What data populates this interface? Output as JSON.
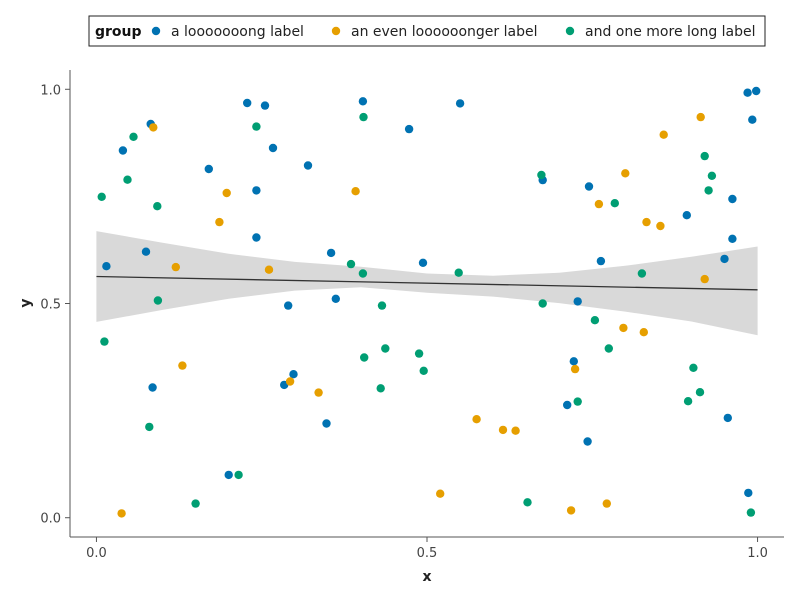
{
  "chart_data": {
    "type": "scatter",
    "title": "",
    "xlabel": "x",
    "ylabel": "y",
    "xlim": [
      -0.04,
      1.04
    ],
    "ylim": [
      -0.045,
      1.045
    ],
    "x_ticks": [
      0.0,
      0.5,
      1.0
    ],
    "x_tick_labels": [
      "0.0",
      "0.5",
      "1.0"
    ],
    "y_ticks": [
      0.0,
      0.5,
      1.0
    ],
    "y_tick_labels": [
      "0.0",
      "0.5",
      "1.0"
    ],
    "grid": false,
    "legend": {
      "title": "group",
      "placement": "top",
      "entries": [
        "a looooooong label",
        "an even loooooonger label",
        "and one more long label"
      ]
    },
    "colors": [
      "#0072B2",
      "#E69F00",
      "#009E73"
    ],
    "series": [
      {
        "name": "a looooooong label",
        "points": [
          [
            0.015,
            0.587
          ],
          [
            0.04,
            0.857
          ],
          [
            0.075,
            0.621
          ],
          [
            0.082,
            0.919
          ],
          [
            0.085,
            0.304
          ],
          [
            0.17,
            0.814
          ],
          [
            0.2,
            0.1
          ],
          [
            0.228,
            0.968
          ],
          [
            0.242,
            0.764
          ],
          [
            0.242,
            0.654
          ],
          [
            0.255,
            0.962
          ],
          [
            0.267,
            0.863
          ],
          [
            0.284,
            0.31
          ],
          [
            0.29,
            0.495
          ],
          [
            0.298,
            0.335
          ],
          [
            0.32,
            0.822
          ],
          [
            0.348,
            0.22
          ],
          [
            0.355,
            0.618
          ],
          [
            0.362,
            0.511
          ],
          [
            0.403,
            0.972
          ],
          [
            0.473,
            0.907
          ],
          [
            0.494,
            0.595
          ],
          [
            0.55,
            0.967
          ],
          [
            0.675,
            0.788
          ],
          [
            0.712,
            0.263
          ],
          [
            0.722,
            0.365
          ],
          [
            0.728,
            0.505
          ],
          [
            0.743,
            0.178
          ],
          [
            0.745,
            0.773
          ],
          [
            0.763,
            0.599
          ],
          [
            0.893,
            0.706
          ],
          [
            0.95,
            0.604
          ],
          [
            0.955,
            0.233
          ],
          [
            0.962,
            0.744
          ],
          [
            0.962,
            0.651
          ],
          [
            0.985,
            0.992
          ],
          [
            0.986,
            0.058
          ],
          [
            0.992,
            0.929
          ],
          [
            0.998,
            0.996
          ]
        ]
      },
      {
        "name": "an even loooooonger label",
        "points": [
          [
            0.038,
            0.01
          ],
          [
            0.086,
            0.911
          ],
          [
            0.12,
            0.585
          ],
          [
            0.13,
            0.355
          ],
          [
            0.186,
            0.69
          ],
          [
            0.197,
            0.758
          ],
          [
            0.261,
            0.579
          ],
          [
            0.293,
            0.318
          ],
          [
            0.336,
            0.292
          ],
          [
            0.392,
            0.762
          ],
          [
            0.52,
            0.056
          ],
          [
            0.575,
            0.23
          ],
          [
            0.615,
            0.205
          ],
          [
            0.634,
            0.203
          ],
          [
            0.718,
            0.017
          ],
          [
            0.724,
            0.347
          ],
          [
            0.76,
            0.732
          ],
          [
            0.772,
            0.033
          ],
          [
            0.797,
            0.443
          ],
          [
            0.8,
            0.804
          ],
          [
            0.828,
            0.433
          ],
          [
            0.832,
            0.69
          ],
          [
            0.853,
            0.681
          ],
          [
            0.858,
            0.894
          ],
          [
            0.914,
            0.935
          ],
          [
            0.92,
            0.557
          ]
        ]
      },
      {
        "name": "and one more long label",
        "points": [
          [
            0.008,
            0.749
          ],
          [
            0.012,
            0.411
          ],
          [
            0.047,
            0.789
          ],
          [
            0.056,
            0.889
          ],
          [
            0.08,
            0.212
          ],
          [
            0.092,
            0.727
          ],
          [
            0.093,
            0.507
          ],
          [
            0.15,
            0.033
          ],
          [
            0.215,
            0.1
          ],
          [
            0.242,
            0.913
          ],
          [
            0.385,
            0.592
          ],
          [
            0.403,
            0.57
          ],
          [
            0.404,
            0.935
          ],
          [
            0.405,
            0.374
          ],
          [
            0.43,
            0.302
          ],
          [
            0.432,
            0.495
          ],
          [
            0.437,
            0.395
          ],
          [
            0.488,
            0.383
          ],
          [
            0.495,
            0.343
          ],
          [
            0.548,
            0.572
          ],
          [
            0.652,
            0.036
          ],
          [
            0.673,
            0.8
          ],
          [
            0.675,
            0.5
          ],
          [
            0.728,
            0.271
          ],
          [
            0.754,
            0.461
          ],
          [
            0.775,
            0.395
          ],
          [
            0.784,
            0.734
          ],
          [
            0.825,
            0.57
          ],
          [
            0.895,
            0.272
          ],
          [
            0.903,
            0.35
          ],
          [
            0.913,
            0.293
          ],
          [
            0.92,
            0.844
          ],
          [
            0.926,
            0.764
          ],
          [
            0.931,
            0.798
          ],
          [
            0.99,
            0.012
          ]
        ]
      }
    ],
    "trend_line": {
      "color": "#333333",
      "band_color": "#d9d9d9",
      "points": [
        [
          0.0,
          0.563
        ],
        [
          1.0,
          0.532
        ]
      ],
      "band": [
        [
          0.0,
          0.457,
          0.669
        ],
        [
          0.1,
          0.485,
          0.642
        ],
        [
          0.2,
          0.511,
          0.616
        ],
        [
          0.3,
          0.53,
          0.597
        ],
        [
          0.4,
          0.538,
          0.586
        ],
        [
          0.5,
          0.525,
          0.57
        ],
        [
          0.6,
          0.516,
          0.565
        ],
        [
          0.7,
          0.501,
          0.572
        ],
        [
          0.8,
          0.481,
          0.588
        ],
        [
          0.9,
          0.458,
          0.609
        ],
        [
          1.0,
          0.426,
          0.633
        ]
      ]
    }
  }
}
